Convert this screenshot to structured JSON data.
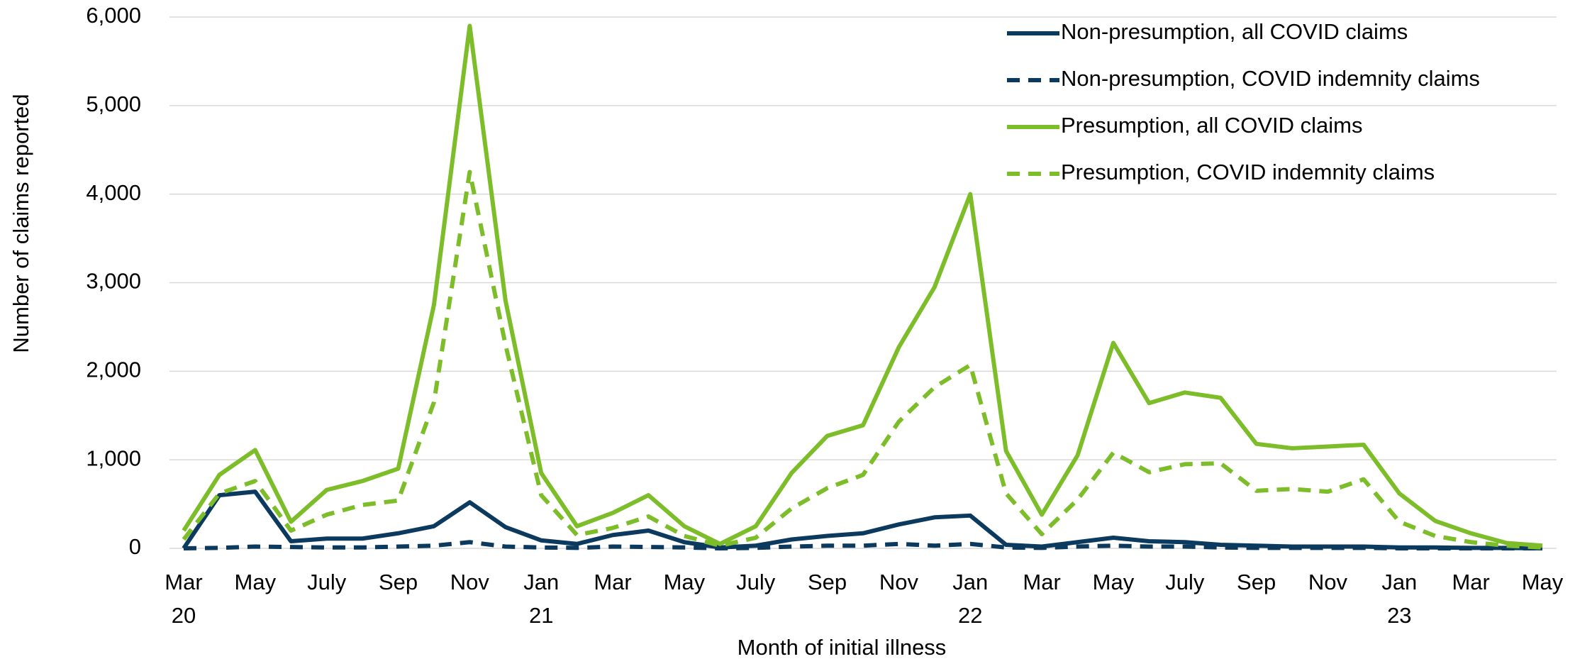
{
  "chart_data": {
    "type": "line",
    "xlabel": "Month of initial illness",
    "ylabel": "Number of claims reported",
    "categories": [
      "Mar 20",
      null,
      "May",
      null,
      "July",
      null,
      "Sep",
      null,
      "Nov",
      null,
      "Jan 21",
      null,
      "Mar",
      null,
      "May",
      null,
      "July",
      null,
      "Sep",
      null,
      "Nov",
      null,
      "Jan 22",
      null,
      "Mar",
      null,
      "May",
      null,
      "July",
      null,
      "Sep",
      null,
      "Nov",
      null,
      "Jan 23",
      null,
      "Mar",
      null,
      "May"
    ],
    "series": [
      {
        "name": "Non-presumption, all COVID claims",
        "color": "#0b3a5e",
        "dashed": false,
        "values": [
          0,
          600,
          640,
          80,
          110,
          110,
          170,
          250,
          520,
          240,
          90,
          50,
          150,
          200,
          70,
          10,
          30,
          100,
          140,
          170,
          270,
          350,
          370,
          40,
          20,
          70,
          120,
          80,
          70,
          40,
          30,
          20,
          20,
          20,
          10,
          10,
          5,
          5,
          0
        ]
      },
      {
        "name": "Non-presumption, COVID indemnity claims",
        "color": "#0b3a5e",
        "dashed": true,
        "values": [
          0,
          5,
          20,
          15,
          10,
          10,
          20,
          30,
          70,
          20,
          10,
          5,
          20,
          15,
          10,
          0,
          5,
          20,
          30,
          30,
          50,
          30,
          50,
          10,
          5,
          20,
          30,
          20,
          20,
          10,
          5,
          5,
          5,
          5,
          0,
          0,
          0,
          0,
          0
        ]
      },
      {
        "name": "Presumption, all COVID claims",
        "color": "#7dbd2a",
        "dashed": false,
        "values": [
          200,
          830,
          1110,
          300,
          660,
          760,
          900,
          2750,
          5900,
          2800,
          850,
          250,
          400,
          600,
          250,
          50,
          250,
          850,
          1270,
          1390,
          2270,
          2950,
          4000,
          1100,
          380,
          1050,
          2320,
          1640,
          1760,
          1700,
          1180,
          1130,
          1150,
          1170,
          620,
          310,
          170,
          60,
          30
        ]
      },
      {
        "name": "Presumption, COVID indemnity claims",
        "color": "#7dbd2a",
        "dashed": true,
        "values": [
          100,
          620,
          760,
          200,
          380,
          490,
          540,
          1650,
          4250,
          2300,
          600,
          150,
          230,
          360,
          140,
          30,
          120,
          450,
          680,
          830,
          1430,
          1820,
          2070,
          620,
          160,
          550,
          1080,
          860,
          950,
          960,
          650,
          670,
          640,
          780,
          300,
          140,
          70,
          30,
          10
        ]
      }
    ],
    "ylim": [
      0,
      6000
    ],
    "yticks": [
      0,
      {
        "value": 1000,
        "label": "1,000"
      },
      {
        "value": 2000,
        "label": "2,000"
      },
      {
        "value": 3000,
        "label": "3,000"
      },
      {
        "value": 4000,
        "label": "4,000"
      },
      {
        "value": 5000,
        "label": "5,000"
      },
      {
        "value": 6000,
        "label": "6,000"
      }
    ],
    "grid": true,
    "legend": "upper right"
  }
}
